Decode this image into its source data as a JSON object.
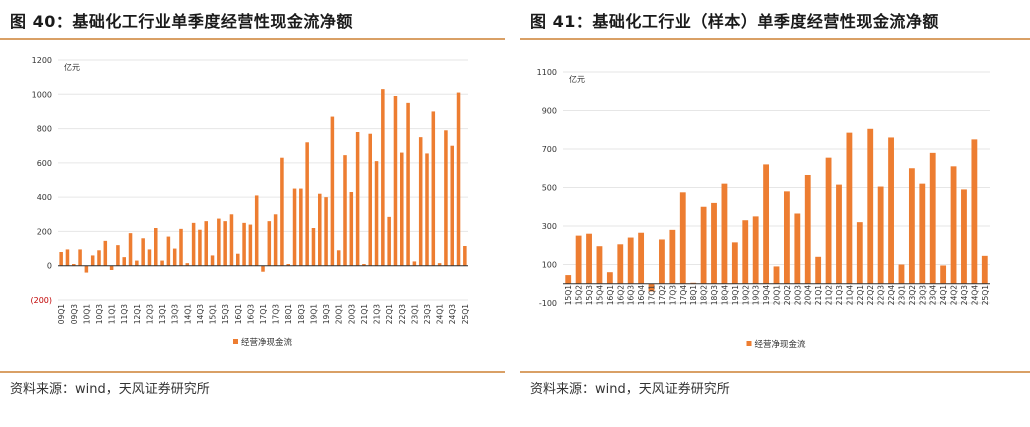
{
  "panels": [
    {
      "title": "图 40：基础化工行业单季度经营性现金流净额",
      "source": "资料来源：wind，天风证券研究所",
      "accent_color": "#d9a066"
    },
    {
      "title": "图 41：基础化工行业（样本）单季度经营性现金流净额",
      "source": "资料来源：wind，天风证券研究所",
      "accent_color": "#d9a066"
    }
  ],
  "chart_data": [
    {
      "type": "bar",
      "unit": "亿元",
      "bar_color": "#ed7d31",
      "negative_label_color": "#c00000",
      "ylim": [
        -200,
        1200
      ],
      "yticks": [
        -200,
        0,
        200,
        400,
        600,
        800,
        1000,
        1200
      ],
      "ytick_labels": [
        "(200)",
        "0",
        "200",
        "400",
        "600",
        "800",
        "1000",
        "1200"
      ],
      "legend": "经营净现金流",
      "legend_position": "bottom-center",
      "grid": true,
      "categories": [
        "09Q1",
        "09Q2",
        "09Q3",
        "09Q4",
        "10Q1",
        "10Q2",
        "10Q3",
        "10Q4",
        "11Q1",
        "11Q2",
        "11Q3",
        "11Q4",
        "12Q1",
        "12Q2",
        "12Q3",
        "12Q4",
        "13Q1",
        "13Q2",
        "13Q3",
        "13Q4",
        "14Q1",
        "14Q2",
        "14Q3",
        "14Q4",
        "15Q1",
        "15Q2",
        "15Q3",
        "15Q4",
        "16Q1",
        "16Q2",
        "16Q3",
        "16Q4",
        "17Q1",
        "17Q2",
        "17Q3",
        "17Q4",
        "18Q1",
        "18Q2",
        "18Q3",
        "18Q4",
        "19Q1",
        "19Q2",
        "19Q3",
        "19Q4",
        "20Q1",
        "20Q2",
        "20Q3",
        "20Q4",
        "21Q1",
        "21Q2",
        "21Q3",
        "21Q4",
        "22Q1",
        "22Q2",
        "22Q3",
        "22Q4",
        "23Q1",
        "23Q2",
        "23Q3",
        "23Q4",
        "24Q1",
        "24Q2",
        "24Q3",
        "24Q4",
        "25Q1"
      ],
      "xtick_labels": [
        "09Q1",
        "09Q3",
        "10Q1",
        "10Q3",
        "11Q1",
        "11Q3",
        "12Q1",
        "12Q3",
        "13Q1",
        "13Q3",
        "14Q1",
        "14Q3",
        "15Q1",
        "15Q3",
        "16Q1",
        "16Q3",
        "17Q1",
        "17Q3",
        "18Q1",
        "18Q3",
        "19Q1",
        "19Q3",
        "20Q1",
        "20Q3",
        "21Q1",
        "21Q3",
        "22Q1",
        "22Q3",
        "23Q1",
        "23Q3",
        "24Q1",
        "24Q3",
        "25Q1"
      ],
      "values": [
        80,
        95,
        10,
        95,
        -40,
        60,
        90,
        145,
        -25,
        120,
        50,
        190,
        30,
        160,
        95,
        220,
        30,
        170,
        100,
        215,
        15,
        250,
        210,
        260,
        60,
        275,
        260,
        300,
        70,
        250,
        240,
        410,
        -35,
        260,
        300,
        630,
        10,
        450,
        450,
        720,
        220,
        420,
        400,
        870,
        90,
        645,
        430,
        780,
        10,
        770,
        610,
        1030,
        285,
        990,
        660,
        950,
        25,
        750,
        655,
        900,
        15,
        790,
        700,
        1010,
        115
      ]
    },
    {
      "type": "bar",
      "unit": "亿元",
      "bar_color": "#ed7d31",
      "ylim": [
        -100,
        1100
      ],
      "yticks": [
        -100,
        100,
        300,
        500,
        700,
        900,
        1100
      ],
      "ytick_labels": [
        "-100",
        "100",
        "300",
        "500",
        "700",
        "900",
        "1100"
      ],
      "legend": "经营净现金流",
      "legend_position": "bottom-center",
      "grid": true,
      "categories": [
        "15Q1",
        "15Q2",
        "15Q3",
        "15Q4",
        "16Q1",
        "16Q2",
        "16Q3",
        "16Q4",
        "17Q1",
        "17Q2",
        "17Q3",
        "17Q4",
        "18Q1",
        "18Q2",
        "18Q3",
        "18Q4",
        "19Q1",
        "19Q2",
        "19Q3",
        "19Q4",
        "20Q1",
        "20Q2",
        "20Q3",
        "20Q4",
        "21Q1",
        "21Q2",
        "21Q3",
        "21Q4",
        "22Q1",
        "22Q2",
        "22Q3",
        "22Q4",
        "23Q1",
        "23Q2",
        "23Q3",
        "23Q4",
        "24Q1",
        "24Q2",
        "24Q3",
        "24Q4",
        "25Q1"
      ],
      "xtick_labels": [
        "15Q1",
        "15Q2",
        "15Q3",
        "15Q4",
        "16Q1",
        "16Q2",
        "16Q3",
        "16Q4",
        "17Q1",
        "17Q2",
        "17Q3",
        "17Q4",
        "18Q1",
        "18Q2",
        "18Q3",
        "18Q4",
        "19Q1",
        "19Q2",
        "19Q3",
        "19Q4",
        "20Q1",
        "20Q2",
        "20Q3",
        "20Q4",
        "21Q1",
        "21Q2",
        "21Q3",
        "21Q4",
        "22Q1",
        "22Q2",
        "22Q3",
        "22Q4",
        "23Q1",
        "23Q2",
        "23Q3",
        "23Q4",
        "24Q1",
        "24Q2",
        "24Q3",
        "24Q4",
        "25Q1"
      ],
      "values": [
        45,
        250,
        260,
        195,
        60,
        205,
        240,
        265,
        -40,
        230,
        280,
        475,
        5,
        400,
        420,
        520,
        215,
        330,
        350,
        620,
        90,
        480,
        365,
        565,
        140,
        655,
        515,
        785,
        320,
        805,
        505,
        760,
        100,
        600,
        520,
        680,
        95,
        610,
        490,
        750,
        145
      ]
    }
  ]
}
